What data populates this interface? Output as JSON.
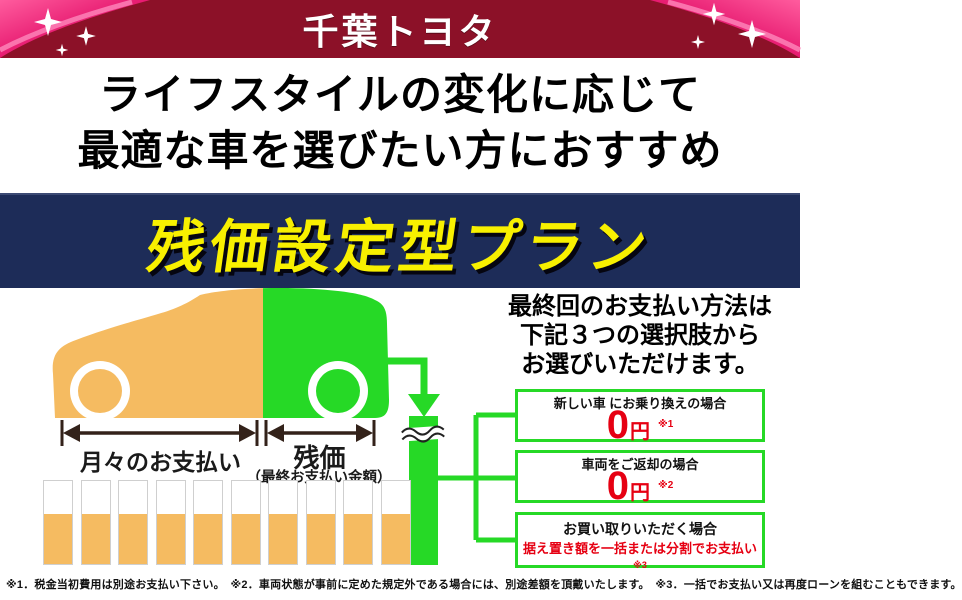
{
  "header": {
    "brand": "千葉トヨタ",
    "bg_color": "#8c1128",
    "ribbon_color": "#e4136b"
  },
  "hero": {
    "line1": "ライフスタイルの変化に応じて",
    "line2": "最適な車を選びたい方におすすめ"
  },
  "banner": {
    "title": "残価設定型プラン",
    "bg_color": "#1d2c58",
    "text_color": "#f8f000"
  },
  "diagram": {
    "monthly_label": "月々のお支払い",
    "residual_label": "残価",
    "residual_sub": "（最終お支払い金額）",
    "bars_count": 10,
    "monthly_color": "#f5bb61",
    "residual_color": "#26d926"
  },
  "options": {
    "heading_lines": [
      "最終回のお支払い方法は",
      "下記３つの選択肢から",
      "お選びいただけます。"
    ],
    "accent_red": "#e60012",
    "items": [
      {
        "title": "新しい車 にお乗り換えの場合",
        "value": "0",
        "unit": "円",
        "note": "※1"
      },
      {
        "title": "車両をご返却の場合",
        "value": "0",
        "unit": "円",
        "note": "※2"
      },
      {
        "title": "お買い取りいただく場合",
        "value_text": "据え置き額を一括または分割でお支払い",
        "note": "※3"
      }
    ]
  },
  "footnote": "※1．税金当初費用は別途お支払い下さい。　※2．車両状態が事前に定めた規定外である場合には、別途差額を頂戴いたします。　※3．一括でお支払い又は再度ローンを組むこともできます。"
}
